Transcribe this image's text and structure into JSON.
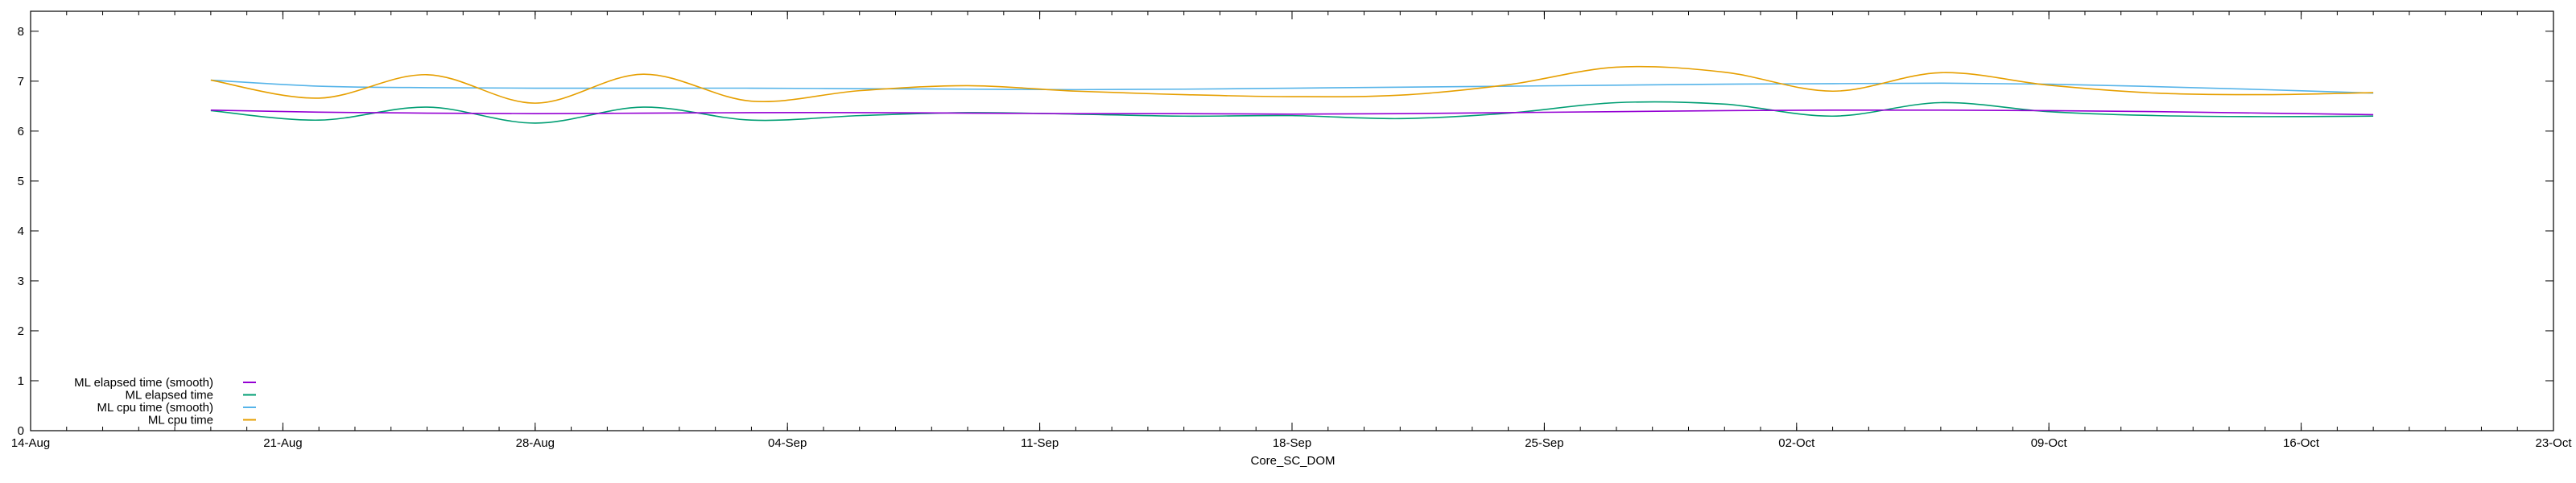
{
  "chart_data": {
    "type": "line",
    "title": "",
    "xlabel": "Core_SC_DOM",
    "ylabel": "",
    "xlim": [
      "14-Aug",
      "23-Oct"
    ],
    "ylim": [
      0,
      8.4
    ],
    "grid": false,
    "legend_position": "bottom-left",
    "x_ticks": [
      "14-Aug",
      "21-Aug",
      "28-Aug",
      "04-Sep",
      "11-Sep",
      "18-Sep",
      "25-Sep",
      "02-Oct",
      "09-Oct",
      "16-Oct",
      "23-Oct"
    ],
    "y_ticks": [
      0,
      1,
      2,
      3,
      4,
      5,
      6,
      7,
      8
    ],
    "x": [
      "19-Aug",
      "22-Aug",
      "25-Aug",
      "28-Aug",
      "31-Aug",
      "03-Sep",
      "06-Sep",
      "09-Sep",
      "12-Sep",
      "15-Sep",
      "18-Sep",
      "21-Sep",
      "24-Sep",
      "27-Sep",
      "30-Sep",
      "03-Oct",
      "06-Oct",
      "09-Oct",
      "12-Oct",
      "15-Oct",
      "18-Oct"
    ],
    "series": [
      {
        "name": "ML elapsed time (smooth)",
        "color": "#9400d3",
        "values": [
          6.42,
          6.38,
          6.36,
          6.35,
          6.36,
          6.37,
          6.37,
          6.36,
          6.35,
          6.35,
          6.34,
          6.35,
          6.37,
          6.39,
          6.41,
          6.42,
          6.42,
          6.41,
          6.39,
          6.36,
          6.33
        ]
      },
      {
        "name": "ML elapsed time",
        "color": "#009e73",
        "values": [
          6.41,
          6.22,
          6.48,
          6.16,
          6.48,
          6.22,
          6.31,
          6.37,
          6.34,
          6.3,
          6.31,
          6.25,
          6.36,
          6.57,
          6.54,
          6.3,
          6.57,
          6.39,
          6.31,
          6.29,
          6.3
        ]
      },
      {
        "name": "ML cpu time (smooth)",
        "color": "#56b4e9",
        "values": [
          7.02,
          6.9,
          6.87,
          6.86,
          6.86,
          6.86,
          6.85,
          6.84,
          6.83,
          6.84,
          6.86,
          6.88,
          6.9,
          6.92,
          6.94,
          6.95,
          6.96,
          6.94,
          6.89,
          6.83,
          6.76
        ]
      },
      {
        "name": "ML cpu time",
        "color": "#e69f00",
        "values": [
          7.02,
          6.66,
          7.13,
          6.56,
          7.14,
          6.6,
          6.81,
          6.91,
          6.8,
          6.73,
          6.69,
          6.72,
          6.93,
          7.28,
          7.18,
          6.8,
          7.17,
          6.92,
          6.76,
          6.73,
          6.77
        ]
      }
    ]
  }
}
